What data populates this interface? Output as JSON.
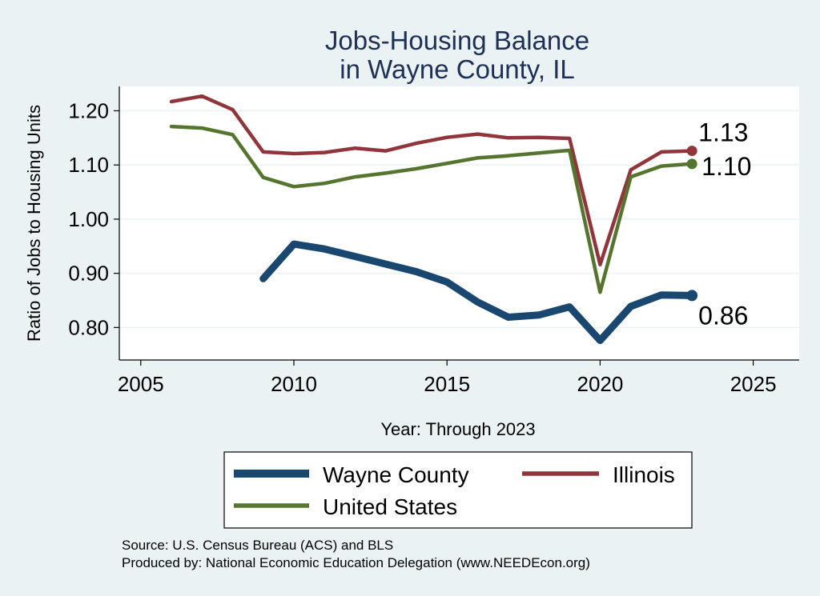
{
  "chart_data": {
    "type": "line",
    "title": [
      "Jobs-Housing Balance",
      "in Wayne County, IL"
    ],
    "xlabel": "Year: Through 2023",
    "ylabel": "Ratio of Jobs to Housing Units",
    "xlim": [
      2004.3,
      2026.5
    ],
    "ylim": [
      0.74,
      1.245
    ],
    "xticks": [
      2005,
      2010,
      2015,
      2020,
      2025
    ],
    "yticks": [
      0.8,
      0.9,
      1.0,
      1.1,
      1.2
    ],
    "ytick_labels": [
      "0.80",
      "0.90",
      "1.00",
      "1.10",
      "1.20"
    ],
    "grid": true,
    "legend_position": "bottom",
    "series": [
      {
        "name": "Wayne County",
        "color": "#1a476f",
        "end_label": "0.86",
        "x": [
          2009,
          2010,
          2011,
          2012,
          2013,
          2014,
          2015,
          2016,
          2017,
          2018,
          2019,
          2020,
          2021,
          2022,
          2023
        ],
        "y": [
          0.89,
          0.954,
          0.945,
          0.931,
          0.917,
          0.903,
          0.884,
          0.847,
          0.819,
          0.823,
          0.838,
          0.776,
          0.839,
          0.86,
          0.859
        ]
      },
      {
        "name": "Illinois",
        "color": "#90353b",
        "end_label": "1.13",
        "x": [
          2006,
          2007,
          2008,
          2009,
          2010,
          2011,
          2012,
          2013,
          2014,
          2015,
          2016,
          2017,
          2018,
          2019,
          2020,
          2021,
          2022,
          2023
        ],
        "y": [
          1.217,
          1.227,
          1.202,
          1.124,
          1.121,
          1.123,
          1.131,
          1.126,
          1.14,
          1.151,
          1.157,
          1.15,
          1.151,
          1.149,
          0.916,
          1.091,
          1.124,
          1.126
        ]
      },
      {
        "name": "United States",
        "color": "#55752f",
        "end_label": "1.10",
        "x": [
          2006,
          2007,
          2008,
          2009,
          2010,
          2011,
          2012,
          2013,
          2014,
          2015,
          2016,
          2017,
          2018,
          2019,
          2020,
          2021,
          2022,
          2023
        ],
        "y": [
          1.171,
          1.168,
          1.156,
          1.077,
          1.06,
          1.066,
          1.078,
          1.085,
          1.093,
          1.103,
          1.113,
          1.117,
          1.122,
          1.127,
          0.865,
          1.078,
          1.098,
          1.102
        ]
      }
    ],
    "source": "Source: U.S. Census Bureau (ACS) and BLS",
    "produced_by": "Produced by: National Economic Education Delegation (www.NEEDEcon.org)"
  }
}
